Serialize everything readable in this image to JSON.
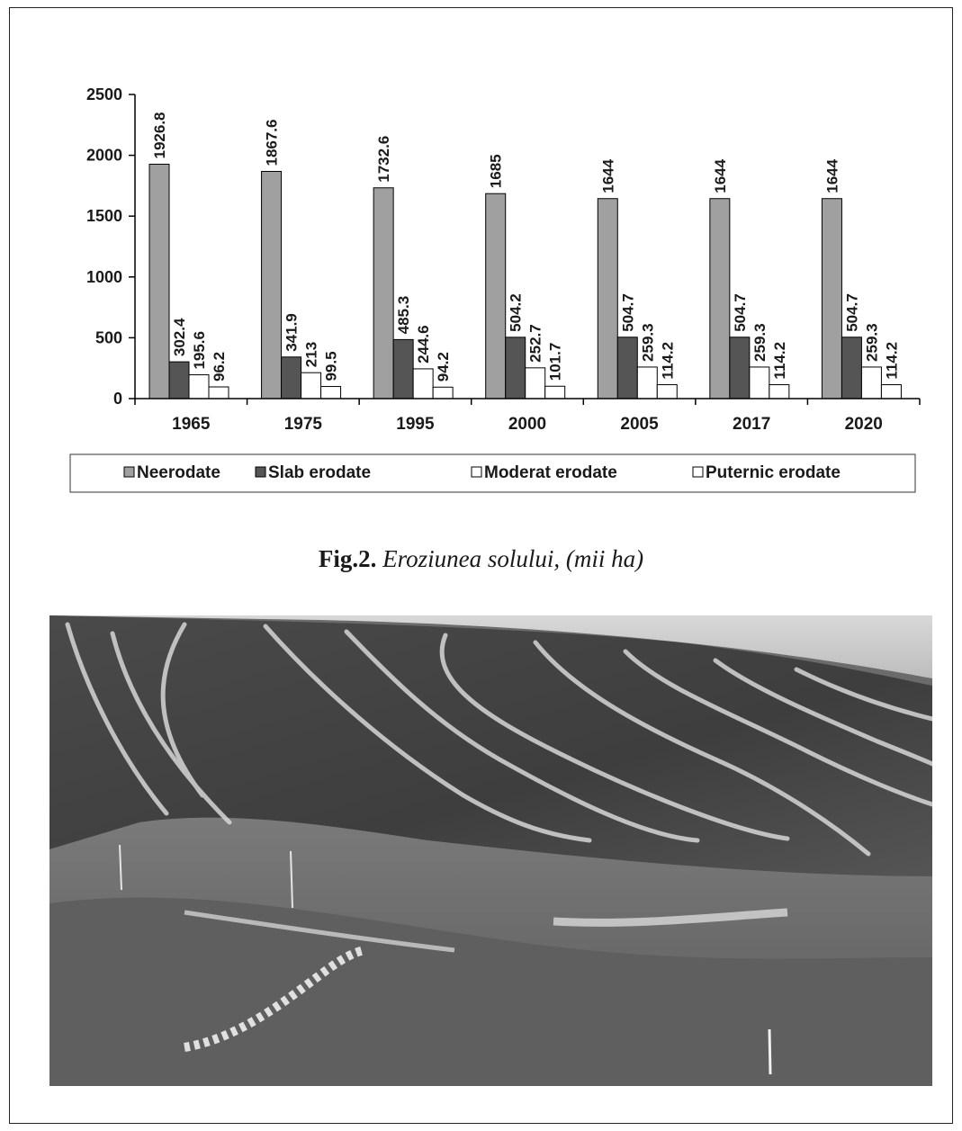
{
  "chart_data": {
    "type": "bar",
    "categories": [
      "1965",
      "1975",
      "1995",
      "2000",
      "2005",
      "2017",
      "2020"
    ],
    "series": [
      {
        "name": "Neerodate",
        "values": [
          1926.8,
          1867.6,
          1732.6,
          1685,
          1644,
          1644,
          1644
        ],
        "labels": [
          "1926.8",
          "1867.6",
          "1732.6",
          "1685",
          "1644",
          "1644",
          "1644"
        ],
        "color": "#a0a0a0"
      },
      {
        "name": "Slab erodate",
        "values": [
          302.4,
          341.9,
          485.3,
          504.2,
          504.7,
          504.7,
          504.7
        ],
        "labels": [
          "302.4",
          "341.9",
          "485.3",
          "504.2",
          "504.7",
          "504.7",
          "504.7"
        ],
        "color": "#555555"
      },
      {
        "name": "Moderat erodate",
        "values": [
          195.6,
          213,
          244.6,
          252.7,
          259.3,
          259.3,
          259.3
        ],
        "labels": [
          "195.6",
          "213",
          "244.6",
          "252.7",
          "259.3",
          "259.3",
          "259.3"
        ],
        "color": "#ffffff"
      },
      {
        "name": "Puternic erodate",
        "values": [
          96.2,
          99.5,
          94.2,
          101.7,
          114.2,
          114.2,
          114.2
        ],
        "labels": [
          "96.2",
          "99.5",
          "94.2",
          "101.7",
          "114.2",
          "114.2",
          "114.2"
        ],
        "color": "#ffffff"
      }
    ],
    "y_ticks": [
      "0",
      "500",
      "1000",
      "1500",
      "2000",
      "2500"
    ],
    "ylim": [
      0,
      2500
    ],
    "legend_position": "bottom",
    "grid": false
  },
  "caption": {
    "label": "Fig.2.",
    "text": "Eroziunea solului, (mii ha)"
  }
}
